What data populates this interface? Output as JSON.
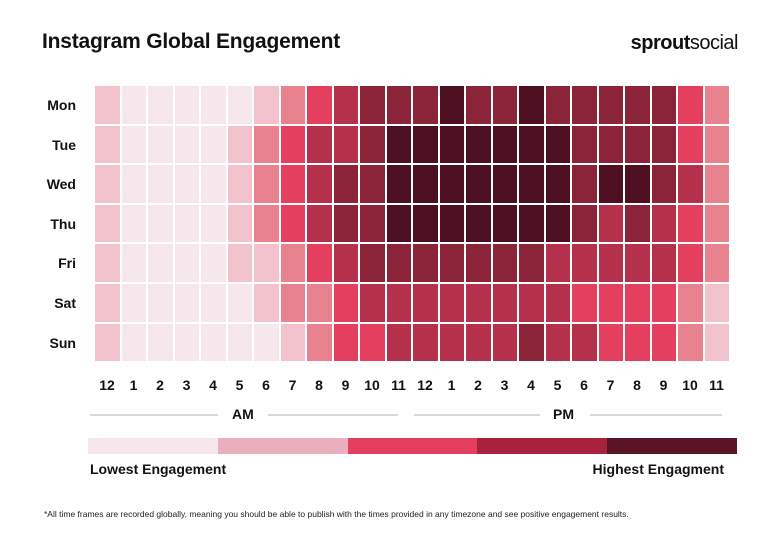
{
  "title": "Instagram Global Engagement",
  "logo": {
    "bold": "sprout",
    "light": "social"
  },
  "chart_data": {
    "type": "heatmap",
    "title": "Instagram Global Engagement",
    "rows": [
      "Mon",
      "Tue",
      "Wed",
      "Thu",
      "Fri",
      "Sat",
      "Sun"
    ],
    "columns": [
      "12",
      "1",
      "2",
      "3",
      "4",
      "5",
      "6",
      "7",
      "8",
      "9",
      "10",
      "11",
      "12",
      "1",
      "2",
      "3",
      "4",
      "5",
      "6",
      "7",
      "8",
      "9",
      "10",
      "11"
    ],
    "period_labels": [
      "AM",
      "PM"
    ],
    "value_scale": "engagement level 0 (lowest) to 7 (highest)",
    "values": [
      [
        1,
        0,
        0,
        0,
        0,
        0,
        1,
        2,
        3,
        4,
        5,
        5,
        5,
        7,
        5,
        5,
        7,
        5,
        5,
        5,
        5,
        5,
        3,
        2
      ],
      [
        1,
        0,
        0,
        0,
        0,
        1,
        2,
        3,
        4,
        4,
        5,
        7,
        7,
        7,
        7,
        7,
        7,
        7,
        5,
        5,
        5,
        5,
        3,
        2
      ],
      [
        1,
        0,
        0,
        0,
        0,
        1,
        2,
        3,
        4,
        5,
        5,
        7,
        7,
        7,
        7,
        7,
        7,
        7,
        5,
        7,
        7,
        5,
        4,
        2
      ],
      [
        1,
        0,
        0,
        0,
        0,
        1,
        2,
        3,
        4,
        5,
        5,
        7,
        7,
        7,
        7,
        7,
        7,
        7,
        5,
        4,
        5,
        4,
        3,
        2
      ],
      [
        1,
        0,
        0,
        0,
        0,
        1,
        1,
        2,
        3,
        4,
        5,
        5,
        5,
        5,
        5,
        5,
        5,
        4,
        4,
        4,
        4,
        4,
        3,
        2
      ],
      [
        1,
        0,
        0,
        0,
        0,
        0,
        1,
        2,
        2,
        3,
        4,
        4,
        4,
        4,
        4,
        4,
        4,
        4,
        3,
        3,
        3,
        3,
        2,
        1
      ],
      [
        1,
        0,
        0,
        0,
        0,
        0,
        0,
        1,
        2,
        3,
        3,
        4,
        4,
        4,
        4,
        4,
        5,
        4,
        4,
        3,
        3,
        3,
        2,
        1
      ]
    ],
    "colors": [
      "#f5e7eb",
      "#f3c3cd",
      "#e8828f",
      "#e43f5e",
      "#b5304a",
      "#8b2439",
      "#7a1f33",
      "#4e1020"
    ],
    "legend": {
      "low_label": "Lowest Engagement",
      "high_label": "Highest Engagment",
      "colors": [
        "#f5e7eb",
        "#eaafbf",
        "#e4405e",
        "#a8223e",
        "#5a1428"
      ],
      "placement": "bottom"
    }
  },
  "footnote": "*All time frames are recorded globally, meaning you should be able to publish with the times provided in any timezone and see positive engagement results."
}
